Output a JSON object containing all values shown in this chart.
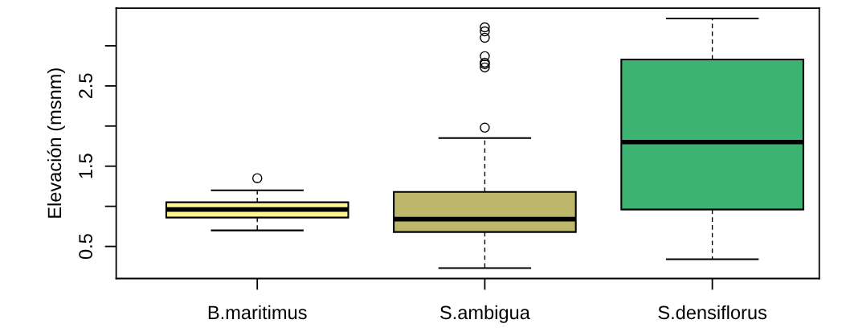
{
  "chart_data": {
    "type": "box",
    "ylabel": "Elevación (msnm)",
    "categories": [
      "B.maritimus",
      "S.ambigua",
      "S.densiflorus"
    ],
    "colors": [
      "#fff68f",
      "#bdb76b",
      "#3cb371"
    ],
    "boxes": [
      {
        "low": 0.7,
        "q1": 0.86,
        "median": 0.96,
        "q3": 1.05,
        "high": 1.2,
        "outliers": [
          1.35
        ]
      },
      {
        "low": 0.23,
        "q1": 0.68,
        "median": 0.84,
        "q3": 1.18,
        "high": 1.85,
        "outliers": [
          1.98,
          2.73,
          2.77,
          2.79,
          2.87,
          3.1,
          3.18,
          3.23
        ]
      },
      {
        "low": 0.34,
        "q1": 0.96,
        "median": 1.8,
        "q3": 2.83,
        "high": 3.34
      }
    ],
    "ylim": [
      0.1,
      3.47
    ],
    "yticks": [
      0.5,
      {
        "value": 1.0,
        "label": null
      },
      1.5,
      {
        "value": 2.0,
        "label": null
      },
      2.5,
      {
        "value": 3.0,
        "label": null
      }
    ],
    "grid": false,
    "line_style": "dashed"
  }
}
